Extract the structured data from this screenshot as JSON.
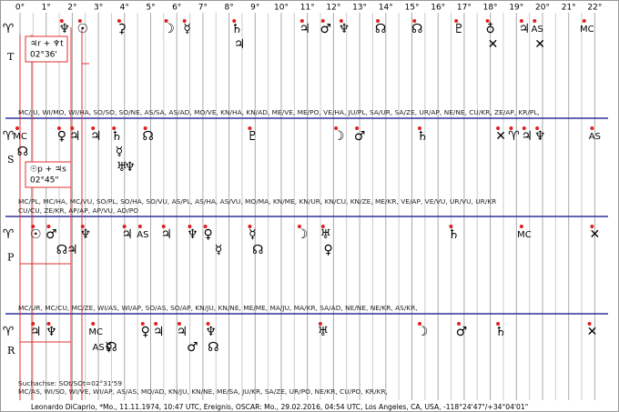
{
  "degree_ticks": [
    {
      "value": 0,
      "label": "0°"
    },
    {
      "value": 1,
      "label": "1°"
    },
    {
      "value": 2,
      "label": "2°"
    },
    {
      "value": 3,
      "label": "3°"
    },
    {
      "value": 4,
      "label": "4°"
    },
    {
      "value": 5,
      "label": "5°"
    },
    {
      "value": 6,
      "label": "6°"
    },
    {
      "value": 7,
      "label": "7°"
    },
    {
      "value": 8,
      "label": "8°"
    },
    {
      "value": 9,
      "label": "9°"
    },
    {
      "value": 10,
      "label": "10°"
    },
    {
      "value": 11,
      "label": "11°"
    },
    {
      "value": 12,
      "label": "12°"
    },
    {
      "value": 13,
      "label": "13°"
    },
    {
      "value": 14,
      "label": "14°"
    },
    {
      "value": 15,
      "label": "15°"
    },
    {
      "value": 16,
      "label": "16°"
    },
    {
      "value": 17,
      "label": "17°"
    },
    {
      "value": 18,
      "label": "18°"
    },
    {
      "value": 19,
      "label": "19°"
    },
    {
      "value": 20,
      "label": "20°"
    },
    {
      "value": 21,
      "label": "21°"
    },
    {
      "value": 22,
      "label": "22°"
    }
  ],
  "rows": [
    {
      "label": "T",
      "glyphs": [
        {
          "glyph": "♆",
          "deg": 1.7
        },
        {
          "glyph": "☉",
          "deg": 2.4
        },
        {
          "glyph": "⚳",
          "deg": 3.9
        },
        {
          "glyph": "☽",
          "deg": 5.7
        },
        {
          "glyph": "☿",
          "deg": 6.4
        },
        {
          "glyph": "♄",
          "deg": 8.3
        },
        {
          "glyph": "♃",
          "deg": 8.4
        },
        {
          "glyph": "♃",
          "deg": 10.9
        },
        {
          "glyph": "♂",
          "deg": 11.7
        },
        {
          "glyph": "♆",
          "deg": 12.4
        },
        {
          "glyph": "☊",
          "deg": 13.8
        },
        {
          "glyph": "☊",
          "deg": 15.2
        },
        {
          "glyph": "♇",
          "deg": 16.8
        },
        {
          "glyph": "♁",
          "deg": 18.0
        },
        {
          "glyph": "✕",
          "deg": 18.1
        },
        {
          "glyph": "♃",
          "deg": 19.3
        },
        {
          "glyph": "AS",
          "deg": 19.8
        },
        {
          "glyph": "✕",
          "deg": 19.9
        },
        {
          "glyph": "MC",
          "deg": 21.7
        }
      ],
      "midpoints": [
        "MC/JU, WI/MO, WI/HA, SO/SO, SO/NE, AS/SA, AS/AD, MO/VE, KN/HA, KN/AD, ME/VE, ME/PO, VE/HA, JU/PL, SA/UR, SA/ZE, UR/AP, NE/NE, CU/KR, ZE/AP, KR/PL,"
      ]
    },
    {
      "label": "S",
      "glyphs": [
        {
          "glyph": "MC",
          "deg": 0.0
        },
        {
          "glyph": "☊",
          "deg": 0.1
        },
        {
          "glyph": "♀",
          "deg": 1.6
        },
        {
          "glyph": "♃",
          "deg": 2.1
        },
        {
          "glyph": "♃",
          "deg": 2.9
        },
        {
          "glyph": "♄",
          "deg": 3.7
        },
        {
          "glyph": "☿",
          "deg": 3.8
        },
        {
          "glyph": "♅",
          "deg": 3.9
        },
        {
          "glyph": "♆",
          "deg": 4.2
        },
        {
          "glyph": "☊",
          "deg": 4.9
        },
        {
          "glyph": "♇",
          "deg": 8.9
        },
        {
          "glyph": "☽",
          "deg": 12.2
        },
        {
          "glyph": "♂",
          "deg": 13.0
        },
        {
          "glyph": "♄",
          "deg": 15.4
        },
        {
          "glyph": "✕",
          "deg": 18.4
        },
        {
          "glyph": "♈",
          "deg": 18.9
        },
        {
          "glyph": "♃",
          "deg": 19.4
        },
        {
          "glyph": "♆",
          "deg": 19.9
        },
        {
          "glyph": "AS",
          "deg": 22.0
        }
      ],
      "midpoints": [
        "MC/PL, MC/HA, MC/VU, SO/PL, SO/HA, SO/VU, AS/PL, AS/HA, AS/VU, MO/MA, KN/ME, KN/UR, KN/CU, KN/ZE, ME/KR, VE/AP, VE/VU, UR/VU, UR/KR",
        "CU/CU, ZE/KR, AP/AP, AP/VU, AD/PO"
      ]
    },
    {
      "label": "P",
      "glyphs": [
        {
          "glyph": "☉",
          "deg": 0.6
        },
        {
          "glyph": "♂",
          "deg": 1.2
        },
        {
          "glyph": "☊",
          "deg": 1.6
        },
        {
          "glyph": "♃",
          "deg": 2.0
        },
        {
          "glyph": "♆",
          "deg": 2.5
        },
        {
          "glyph": "♃",
          "deg": 4.1
        },
        {
          "glyph": "AS",
          "deg": 4.7
        },
        {
          "glyph": "♃",
          "deg": 5.6
        },
        {
          "glyph": "♆",
          "deg": 6.6
        },
        {
          "glyph": "♀",
          "deg": 7.2
        },
        {
          "glyph": "☿",
          "deg": 7.6
        },
        {
          "glyph": "☿",
          "deg": 8.9
        },
        {
          "glyph": "☊",
          "deg": 9.1
        },
        {
          "glyph": "☽",
          "deg": 10.8
        },
        {
          "glyph": "♅",
          "deg": 11.7
        },
        {
          "glyph": "♀",
          "deg": 11.8
        },
        {
          "glyph": "♄",
          "deg": 16.6
        },
        {
          "glyph": "MC",
          "deg": 19.3
        },
        {
          "glyph": "✕",
          "deg": 22.0
        }
      ],
      "midpoints": [
        "MC/UR, MC/CU, MC/ZE, WI/AS, WI/AP, SO/AS, SO/AP, KN/JU, KN/NE, ME/ME, MA/JU, MA/KR, SA/AD, NE/NE, NE/KR, AS/KR,"
      ]
    },
    {
      "label": "R",
      "glyphs": [
        {
          "glyph": "♃",
          "deg": 0.6
        },
        {
          "glyph": "♆",
          "deg": 1.2
        },
        {
          "glyph": "MC",
          "deg": 2.9
        },
        {
          "glyph": "AS",
          "deg": 3.0
        },
        {
          "glyph": "☿",
          "deg": 3.4
        },
        {
          "glyph": "☊",
          "deg": 3.5
        },
        {
          "glyph": "♀",
          "deg": 4.8
        },
        {
          "glyph": "♃",
          "deg": 5.3
        },
        {
          "glyph": "♃",
          "deg": 6.2
        },
        {
          "glyph": "♂",
          "deg": 6.6
        },
        {
          "glyph": "♆",
          "deg": 7.3
        },
        {
          "glyph": "☊",
          "deg": 7.4
        },
        {
          "glyph": "♅",
          "deg": 11.6
        },
        {
          "glyph": "☽",
          "deg": 15.4
        },
        {
          "glyph": "♂",
          "deg": 16.9
        },
        {
          "glyph": "♄",
          "deg": 18.4
        },
        {
          "glyph": "✕",
          "deg": 21.9
        }
      ],
      "midpoints": [
        "MC/AS, WI/SO, WI/VE, WI/AP, AS/AS, MO/AD, KN/JU, KN/NE, ME/SA, JU/KR, SA/ZE, UR/PO, NE/KR, CU/PO, KR/KR,"
      ]
    }
  ],
  "boxes": [
    {
      "lines": [
        "♃r + ♆t",
        "02°36'"
      ]
    },
    {
      "lines": [
        "☉p + ♃s",
        "02°45\""
      ]
    }
  ],
  "search_axis": "Suchachse: SOt/SOt=02°31'59",
  "footer": "Leonardo DiCaprio, *Mo., 11.11.1974, 10:47 UTC, Ereignis, OSCAR: Mo., 29.02.2016, 04:54 UTC, Los Angeles, CA, USA, -118°24'47\"/+34°04'01\""
}
